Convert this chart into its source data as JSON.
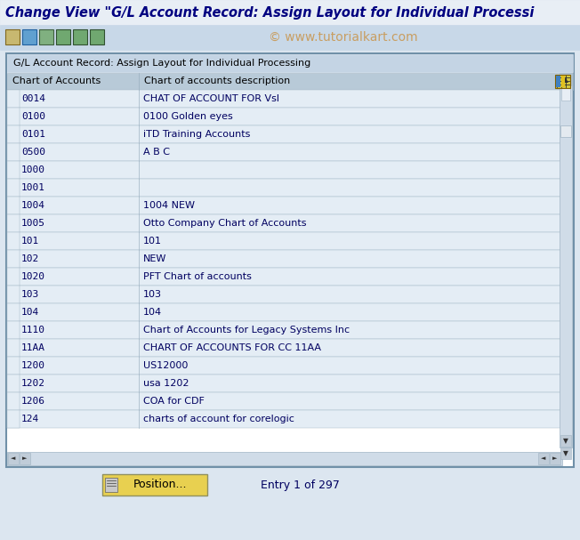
{
  "title": "Change View \"G/L Account Record: Assign Layout for Individual Processi",
  "watermark": "© www.tutorialkart.com",
  "section_title": "G/L Account Record: Assign Layout for Individual Processing",
  "col1_header": "Chart of Accounts",
  "col2_header": "Chart of accounts description",
  "rows": [
    [
      "0014",
      "CHAT OF ACCOUNT FOR Vsl"
    ],
    [
      "0100",
      "0100 Golden eyes"
    ],
    [
      "0101",
      "iTD Training Accounts"
    ],
    [
      "0500",
      "A B C"
    ],
    [
      "1000",
      ""
    ],
    [
      "1001",
      ""
    ],
    [
      "1004",
      "1004 NEW"
    ],
    [
      "1005",
      "Otto Company Chart of Accounts"
    ],
    [
      "101",
      "101"
    ],
    [
      "102",
      "NEW"
    ],
    [
      "1020",
      "PFT Chart of accounts"
    ],
    [
      "103",
      "103"
    ],
    [
      "104",
      "104"
    ],
    [
      "1110",
      "Chart of Accounts for Legacy Systems Inc"
    ],
    [
      "11AA",
      "CHART OF ACCOUNTS FOR CC 11AA"
    ],
    [
      "1200",
      "US12000"
    ],
    [
      "1202",
      "usa 1202"
    ],
    [
      "1206",
      "COA for CDF"
    ],
    [
      "124",
      "charts of account for corelogic"
    ]
  ],
  "footer_button": "Position...",
  "footer_entry": "Entry 1 of 297",
  "bg_color": "#dce6f0",
  "title_bg": "#e8eef5",
  "toolbar_bg": "#c8d8e8",
  "table_outer_border": "#7090a8",
  "table_header_bg": "#b8cad8",
  "table_row_bg": "#e4edf5",
  "table_border": "#a0b4c4",
  "title_color": "#000080",
  "row_color": "#000060",
  "watermark_color": "#c8944a",
  "button_bg": "#e8d050",
  "section_title_bg": "#c4d4e4",
  "scrollbar_bg": "#d0dce8",
  "scrollbar_arrow_bg": "#c0ccd8"
}
